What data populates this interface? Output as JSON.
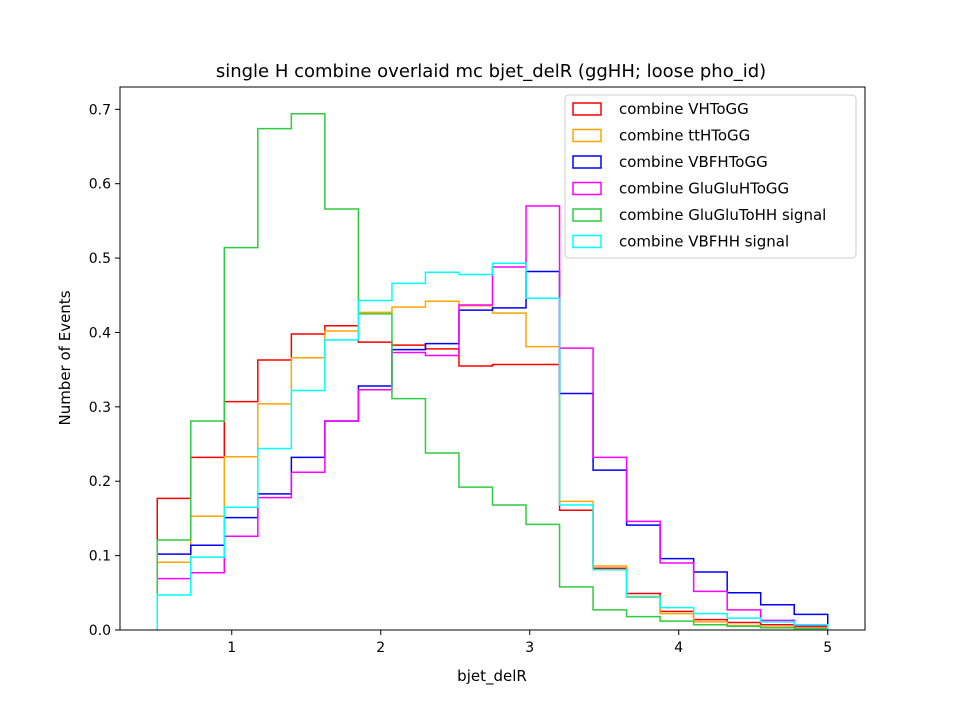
{
  "chart_data": {
    "type": "step-histogram",
    "title": "single H combine overlaid mc bjet_delR (ggHH; loose pho_id)",
    "xlabel": "bjet_delR",
    "ylabel": "Number of Events",
    "xlim": [
      0.25,
      5.25
    ],
    "ylim": [
      0,
      0.73
    ],
    "x_ticks": [
      1,
      2,
      3,
      4,
      5
    ],
    "y_ticks": [
      0.0,
      0.1,
      0.2,
      0.3,
      0.4,
      0.5,
      0.6,
      0.7
    ],
    "x_tick_labels": [
      "1",
      "2",
      "3",
      "4",
      "5"
    ],
    "y_tick_labels": [
      "0.0",
      "0.1",
      "0.2",
      "0.3",
      "0.4",
      "0.5",
      "0.6",
      "0.7"
    ],
    "grid": false,
    "legend_position": "top-right",
    "bin_edges": [
      0.5,
      0.725,
      0.95,
      1.175,
      1.4,
      1.625,
      1.85,
      2.075,
      2.3,
      2.525,
      2.75,
      2.975,
      3.2,
      3.425,
      3.65,
      3.875,
      4.1,
      4.325,
      4.55,
      4.775,
      5.0
    ],
    "series": [
      {
        "name": "combine VHToGG",
        "color": "#ff0000",
        "values": [
          0.177,
          0.232,
          0.307,
          0.363,
          0.398,
          0.409,
          0.387,
          0.383,
          0.378,
          0.355,
          0.357,
          0.357,
          0.161,
          0.083,
          0.049,
          0.025,
          0.014,
          0.01,
          0.007,
          0.005
        ]
      },
      {
        "name": "combine ttHToGG",
        "color": "#ffa500",
        "values": [
          0.091,
          0.153,
          0.233,
          0.304,
          0.366,
          0.402,
          0.427,
          0.434,
          0.442,
          0.436,
          0.426,
          0.381,
          0.173,
          0.086,
          0.044,
          0.022,
          0.011,
          0.006,
          0.004,
          0.003
        ]
      },
      {
        "name": "combine VBFHToGG",
        "color": "#0000ff",
        "values": [
          0.102,
          0.114,
          0.151,
          0.183,
          0.232,
          0.281,
          0.328,
          0.377,
          0.385,
          0.43,
          0.433,
          0.482,
          0.318,
          0.215,
          0.141,
          0.096,
          0.078,
          0.05,
          0.034,
          0.021
        ]
      },
      {
        "name": "combine GluGluHToGG",
        "color": "#ff00ff",
        "values": [
          0.069,
          0.077,
          0.126,
          0.178,
          0.212,
          0.281,
          0.323,
          0.373,
          0.369,
          0.437,
          0.488,
          0.57,
          0.379,
          0.232,
          0.146,
          0.09,
          0.052,
          0.027,
          0.013,
          0.006
        ]
      },
      {
        "name": "combine GluGluToHH signal",
        "color": "#2ecc40",
        "values": [
          0.121,
          0.281,
          0.514,
          0.674,
          0.694,
          0.566,
          0.425,
          0.311,
          0.238,
          0.192,
          0.168,
          0.142,
          0.058,
          0.027,
          0.018,
          0.012,
          0.007,
          0.005,
          0.003,
          0.002
        ]
      },
      {
        "name": "combine VBFHH signal",
        "color": "#00ffff",
        "values": [
          0.047,
          0.098,
          0.165,
          0.244,
          0.322,
          0.39,
          0.443,
          0.466,
          0.481,
          0.478,
          0.493,
          0.446,
          0.168,
          0.081,
          0.045,
          0.03,
          0.022,
          0.016,
          0.011,
          0.007
        ]
      }
    ]
  }
}
